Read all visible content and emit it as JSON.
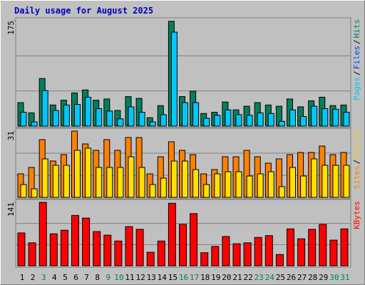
{
  "title": "Daily usage for August 2025",
  "categories": [
    "1",
    "2",
    "3",
    "4",
    "5",
    "6",
    "7",
    "8",
    "9",
    "10",
    "11",
    "12",
    "13",
    "14",
    "15",
    "16",
    "17",
    "18",
    "19",
    "20",
    "21",
    "22",
    "23",
    "24",
    "25",
    "26",
    "27",
    "28",
    "29",
    "30",
    "31"
  ],
  "category_colors": [
    "#000000",
    "#000000",
    "#00805C",
    "#000000",
    "#000000",
    "#000000",
    "#000000",
    "#000000",
    "#00805C",
    "#00805C",
    "#000000",
    "#000000",
    "#000000",
    "#000000",
    "#000000",
    "#00805C",
    "#00805C",
    "#000000",
    "#000000",
    "#000000",
    "#000000",
    "#000000",
    "#00805C",
    "#00805C",
    "#000000",
    "#000000",
    "#000000",
    "#000000",
    "#000000",
    "#00805C",
    "#00805C"
  ],
  "separator": "/",
  "chart_data": [
    {
      "type": "bar",
      "ylim": [
        0,
        175
      ],
      "yticks": [
        175
      ],
      "legend": [
        {
          "name": "Pages",
          "color": "#00C8FF"
        },
        {
          "name": "Files",
          "color": "#0040FF"
        },
        {
          "name": "Hits",
          "color": "#00805C"
        }
      ],
      "series": [
        {
          "color": "#00805C",
          "values": [
            39,
            22,
            79,
            35,
            43,
            55,
            60,
            43,
            45,
            26,
            49,
            46,
            14,
            34,
            174,
            49,
            58,
            21,
            23,
            40,
            27,
            33,
            39,
            35,
            33,
            45,
            32,
            42,
            48,
            34,
            35
          ]
        },
        {
          "color": "#00C8FF",
          "values": [
            23,
            7,
            59,
            26,
            35,
            36,
            48,
            29,
            25,
            12,
            32,
            23,
            7,
            19,
            156,
            39,
            39,
            13,
            18,
            27,
            19,
            18,
            22,
            21,
            8,
            27,
            16,
            33,
            29,
            28,
            23
          ]
        }
      ]
    },
    {
      "type": "bar",
      "ylim": [
        0,
        31
      ],
      "yticks": [
        31
      ],
      "legend": [
        {
          "name": "Sites",
          "color": "#FF8000"
        },
        {
          "name": "Visits",
          "color": "#FFC800"
        }
      ],
      "series": [
        {
          "color": "#FF8000",
          "values": [
            11,
            14,
            27,
            17,
            20,
            31,
            25,
            22,
            27,
            22,
            28,
            28,
            11,
            19,
            26,
            22,
            20,
            11,
            13,
            19,
            19,
            22,
            19,
            16,
            18,
            20,
            21,
            21,
            24,
            20,
            21
          ]
        },
        {
          "color": "#FFE000",
          "values": [
            6,
            4,
            18,
            15,
            15,
            22,
            23,
            14,
            14,
            14,
            19,
            14,
            6,
            9,
            17,
            17,
            13,
            6,
            11,
            12,
            12,
            10,
            11,
            12,
            5,
            14,
            10,
            18,
            15,
            15,
            15
          ]
        }
      ]
    },
    {
      "type": "bar",
      "ylim": [
        0,
        141
      ],
      "yticks": [
        141
      ],
      "legend": [
        {
          "name": "KBytes",
          "color": "#FF0000"
        }
      ],
      "series": [
        {
          "color": "#FF0000",
          "values": [
            73,
            51,
            141,
            71,
            79,
            112,
            106,
            76,
            68,
            55,
            87,
            81,
            30,
            55,
            139,
            92,
            116,
            29,
            43,
            65,
            49,
            51,
            63,
            67,
            25,
            82,
            60,
            81,
            92,
            57,
            82
          ]
        }
      ]
    }
  ]
}
